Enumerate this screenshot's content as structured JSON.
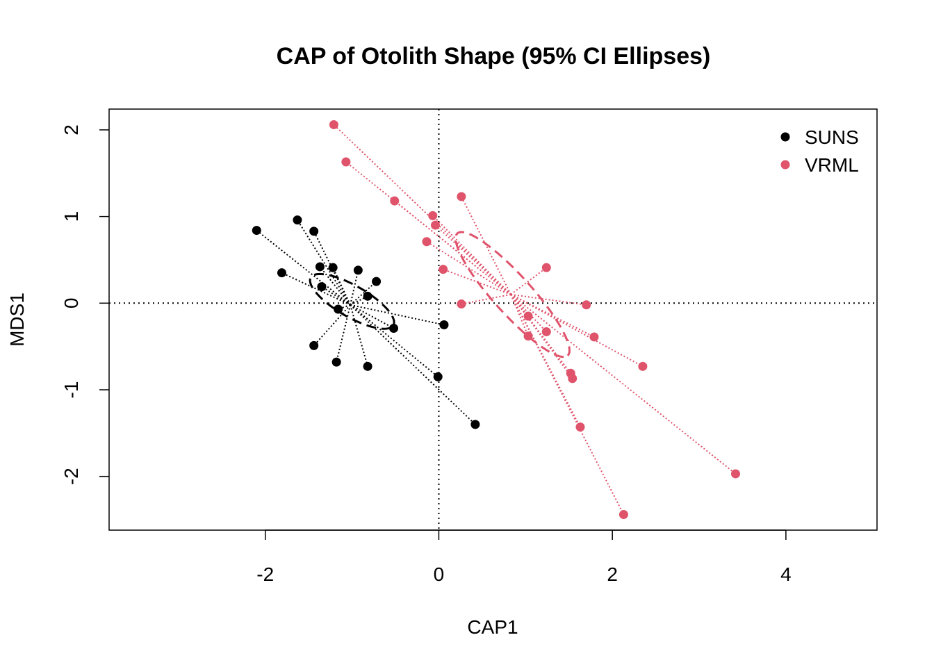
{
  "chart_data": {
    "type": "scatter",
    "title": "CAP of Otolith Shape (95% CI Ellipses)",
    "xlabel": "CAP1",
    "ylabel": "MDS1",
    "xlim": [
      -3.8,
      5.05
    ],
    "ylim": [
      -2.62,
      2.24
    ],
    "xticks": [
      -2,
      0,
      2,
      4
    ],
    "yticks": [
      -2,
      -1,
      0,
      1,
      2
    ],
    "reference_lines": {
      "x": 0,
      "y": 0
    },
    "legend_position": "top-right",
    "grid": false,
    "series": [
      {
        "name": "SUNS",
        "color": "#000000",
        "centroid": [
          -1.02,
          -0.02
        ],
        "ellipse": {
          "center": [
            -1.0,
            0.02
          ],
          "semi_major": 0.55,
          "semi_minor": 0.18,
          "angle_deg": -30
        },
        "points": [
          [
            -2.1,
            0.84
          ],
          [
            -1.63,
            0.96
          ],
          [
            -1.44,
            0.83
          ],
          [
            -1.37,
            0.42
          ],
          [
            -1.22,
            0.41
          ],
          [
            -0.93,
            0.38
          ],
          [
            -1.81,
            0.35
          ],
          [
            -0.72,
            0.25
          ],
          [
            -1.35,
            0.19
          ],
          [
            -0.82,
            0.08
          ],
          [
            -1.16,
            -0.07
          ],
          [
            0.06,
            -0.25
          ],
          [
            -0.52,
            -0.29
          ],
          [
            -1.44,
            -0.49
          ],
          [
            -1.18,
            -0.68
          ],
          [
            -0.82,
            -0.73
          ],
          [
            -0.01,
            -0.85
          ],
          [
            0.42,
            -1.4
          ]
        ]
      },
      {
        "name": "VRML",
        "color": "#DF536B",
        "centroid": [
          0.83,
          0.1
        ],
        "ellipse": {
          "center": [
            0.85,
            0.1
          ],
          "semi_major": 0.95,
          "semi_minor": 0.22,
          "angle_deg": -48
        },
        "points": [
          [
            -1.21,
            2.06
          ],
          [
            -1.07,
            1.63
          ],
          [
            -0.51,
            1.18
          ],
          [
            0.26,
            1.23
          ],
          [
            -0.07,
            1.01
          ],
          [
            -0.04,
            0.9
          ],
          [
            -0.14,
            0.71
          ],
          [
            0.05,
            0.39
          ],
          [
            1.24,
            0.41
          ],
          [
            0.26,
            -0.01
          ],
          [
            1.7,
            -0.02
          ],
          [
            1.03,
            -0.15
          ],
          [
            1.24,
            -0.33
          ],
          [
            1.03,
            -0.38
          ],
          [
            1.79,
            -0.39
          ],
          [
            2.35,
            -0.73
          ],
          [
            1.52,
            -0.81
          ],
          [
            1.54,
            -0.87
          ],
          [
            1.63,
            -1.43
          ],
          [
            3.42,
            -1.97
          ],
          [
            2.13,
            -2.44
          ]
        ]
      }
    ]
  }
}
